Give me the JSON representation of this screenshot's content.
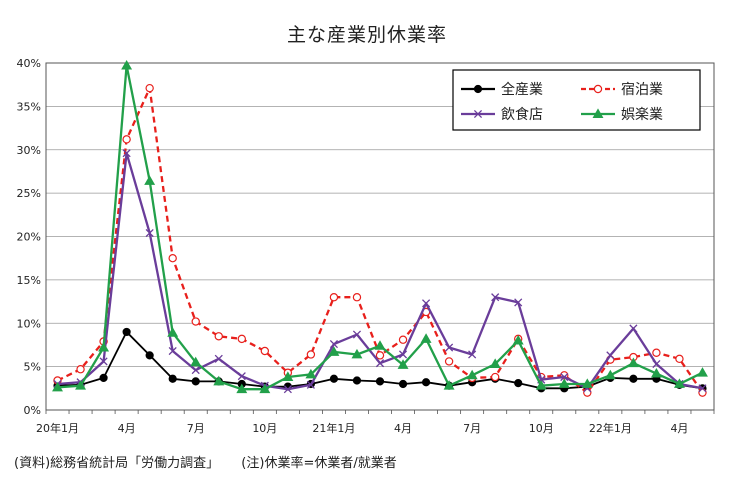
{
  "title": "主な産業別休業率",
  "footnote": {
    "source": "(資料)総務省統計局「労働力調査」",
    "note": "(注)休業率=休業者/就業者"
  },
  "chart_data": {
    "type": "line",
    "title": "主な産業別休業率",
    "xlabel": "",
    "ylabel": "",
    "ylim": [
      0,
      40
    ],
    "y_ticks": [
      "0%",
      "5%",
      "10%",
      "15%",
      "20%",
      "25%",
      "30%",
      "35%",
      "40%"
    ],
    "x_tick_labels": [
      {
        "index": 0,
        "label": "20年1月"
      },
      {
        "index": 3,
        "label": "4月"
      },
      {
        "index": 6,
        "label": "7月"
      },
      {
        "index": 9,
        "label": "10月"
      },
      {
        "index": 12,
        "label": "21年1月"
      },
      {
        "index": 15,
        "label": "4月"
      },
      {
        "index": 18,
        "label": "7月"
      },
      {
        "index": 21,
        "label": "10月"
      },
      {
        "index": 24,
        "label": "22年1月"
      },
      {
        "index": 27,
        "label": "4月"
      }
    ],
    "x": [
      "2020-01",
      "2020-02",
      "2020-03",
      "2020-04",
      "2020-05",
      "2020-06",
      "2020-07",
      "2020-08",
      "2020-09",
      "2020-10",
      "2020-11",
      "2020-12",
      "2021-01",
      "2021-02",
      "2021-03",
      "2021-04",
      "2021-05",
      "2021-06",
      "2021-07",
      "2021-08",
      "2021-09",
      "2021-10",
      "2021-11",
      "2021-12",
      "2022-01",
      "2022-02",
      "2022-03",
      "2022-04",
      "2022-05"
    ],
    "grid": true,
    "legend_position": "top-right",
    "series": [
      {
        "name": "全産業",
        "color": "#000000",
        "dash": "solid",
        "marker": "filled-circle",
        "values": [
          2.8,
          2.9,
          3.7,
          9.0,
          6.3,
          3.6,
          3.3,
          3.3,
          3.0,
          2.7,
          2.7,
          3.0,
          3.6,
          3.4,
          3.3,
          3.0,
          3.2,
          2.8,
          3.2,
          3.6,
          3.1,
          2.5,
          2.5,
          2.7,
          3.7,
          3.6,
          3.6,
          2.9,
          2.5
        ]
      },
      {
        "name": "宿泊業",
        "color": "#e8201c",
        "dash": "dashed",
        "marker": "open-circle",
        "values": [
          3.4,
          4.7,
          7.9,
          31.2,
          37.1,
          17.5,
          10.2,
          8.5,
          8.2,
          6.8,
          4.3,
          6.4,
          13.0,
          13.0,
          6.3,
          8.1,
          11.3,
          5.6,
          3.7,
          3.8,
          8.2,
          3.8,
          4.0,
          2.0,
          5.8,
          6.1,
          6.6,
          5.9,
          2.0
        ]
      },
      {
        "name": "飲食店",
        "color": "#6a3d9a",
        "dash": "solid",
        "marker": "x",
        "values": [
          3.0,
          3.2,
          5.6,
          29.6,
          20.4,
          6.8,
          4.6,
          5.9,
          3.9,
          2.8,
          2.4,
          2.9,
          7.6,
          8.7,
          5.4,
          6.4,
          12.3,
          7.2,
          6.4,
          13.0,
          12.4,
          3.5,
          3.8,
          2.5,
          6.3,
          9.4,
          5.3,
          3.0,
          2.5
        ]
      },
      {
        "name": "娯楽業",
        "color": "#22a04a",
        "dash": "solid",
        "marker": "filled-triangle",
        "values": [
          2.6,
          2.8,
          7.2,
          39.7,
          26.4,
          8.9,
          5.5,
          3.3,
          2.4,
          2.4,
          3.8,
          4.1,
          6.7,
          6.4,
          7.4,
          5.2,
          8.2,
          2.8,
          4.0,
          5.3,
          8.0,
          2.8,
          3.0,
          3.0,
          4.0,
          5.4,
          4.2,
          3.0,
          4.3
        ]
      }
    ]
  }
}
